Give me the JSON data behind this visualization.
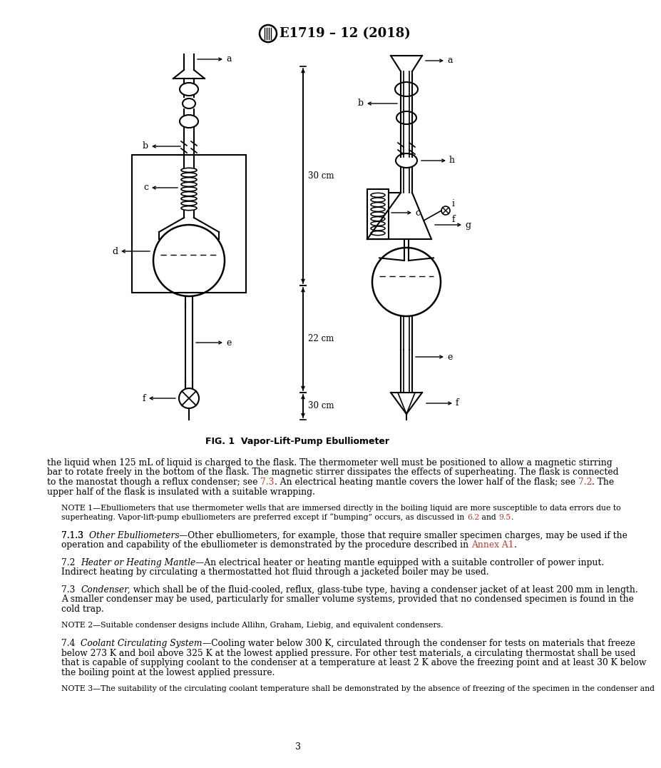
{
  "title": "E1719 – 12 (2018)",
  "page_number": "3",
  "fig_caption": "FIG. 1  Vapor-Lift-Pump Ebulliometer",
  "red_color": "#c0392b",
  "background_color": "#ffffff",
  "text_color": "#000000",
  "body_lines": [
    "the liquid when 125 mL of liquid is charged to the flask. The thermometer well must be positioned to allow a magnetic stirring",
    "bar to rotate freely in the bottom of the flask. The magnetic stirrer dissipates the effects of superheating. The flask is connected",
    "upper half of the flask is insulated with a suitable wrapping.",
    "NOTE 1—Ebulliometers that use thermometer wells that are immersed directly in the boiling liquid are more susceptible to data errors due to",
    "superheating. Vapor-lift-pump ebulliometers are preferred except if “bumping” occurs, as discussed in ",
    "7.1.3  Other Ebulliometers—Other ebulliometers, for example, those that require smaller specimen charges, may be used if the",
    "operation and capability of the ebulliometer is demonstrated by the procedure described in ",
    "7.2  Heater or Heating Mantle—An electrical heater or heating mantle equipped with a suitable controller of power input.",
    "Indirect heating by circulating a thermostatted hot fluid through a jacketed boiler may be used.",
    "7.3  Condenser, which shall be of the fluid-cooled, reflux, glass-tube type, having a condenser jacket of at least 200 mm in length.",
    "A smaller condenser may be used, particularly for smaller volume systems, provided that no condensed specimen is found in the",
    "cold trap.",
    "NOTE 2—Suitable condenser designs include Allihn, Graham, Liebig, and equivalent condensers.",
    "7.4  Coolant Circulating System—Cooling water below 300 K, circulated through the condenser for tests on materials that freeze",
    "below 273 K and boil above 325 K at the lowest applied pressure. For other test materials, a circulating thermostat shall be used",
    "that is capable of supplying coolant to the condenser at a temperature at least 2 K above the freezing point and at least 30 K below",
    "the boiling point at the lowest applied pressure.",
    "NOTE 3—The suitability of the circulating coolant temperature shall be demonstrated by the absence of freezing of the specimen in the condenser and"
  ]
}
